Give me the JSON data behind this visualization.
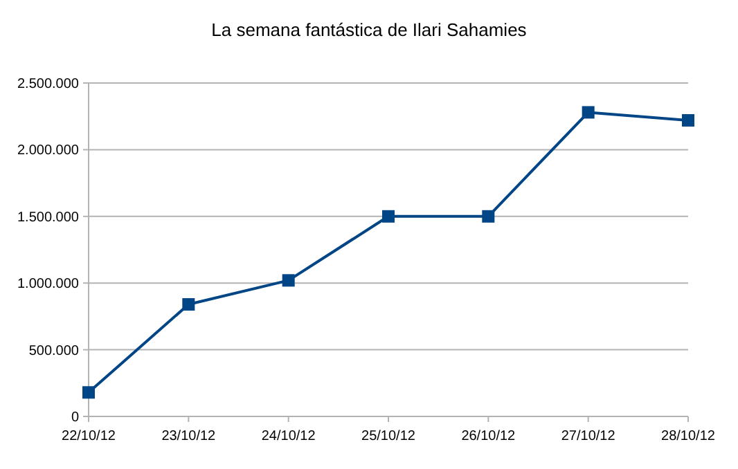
{
  "chart_data": {
    "type": "line",
    "title": "La semana fantástica de Ilari Sahamies",
    "categories": [
      "22/10/12",
      "23/10/12",
      "24/10/12",
      "25/10/12",
      "26/10/12",
      "27/10/12",
      "28/10/12"
    ],
    "series": [
      {
        "color": "#004586",
        "values": [
          180000,
          840000,
          1020000,
          1500000,
          1500000,
          2280000,
          2220000
        ]
      }
    ],
    "ylim": [
      0,
      2500000
    ],
    "yticks": [
      {
        "value": 0,
        "label": "0"
      },
      {
        "value": 500000,
        "label": "500.000"
      },
      {
        "value": 1000000,
        "label": "1.000.000"
      },
      {
        "value": 1500000,
        "label": "1.500.000"
      },
      {
        "value": 2000000,
        "label": "2.000.000"
      },
      {
        "value": 2500000,
        "label": "2.500.000"
      }
    ],
    "grid": "y",
    "marker": "square",
    "line_style": "solid"
  }
}
